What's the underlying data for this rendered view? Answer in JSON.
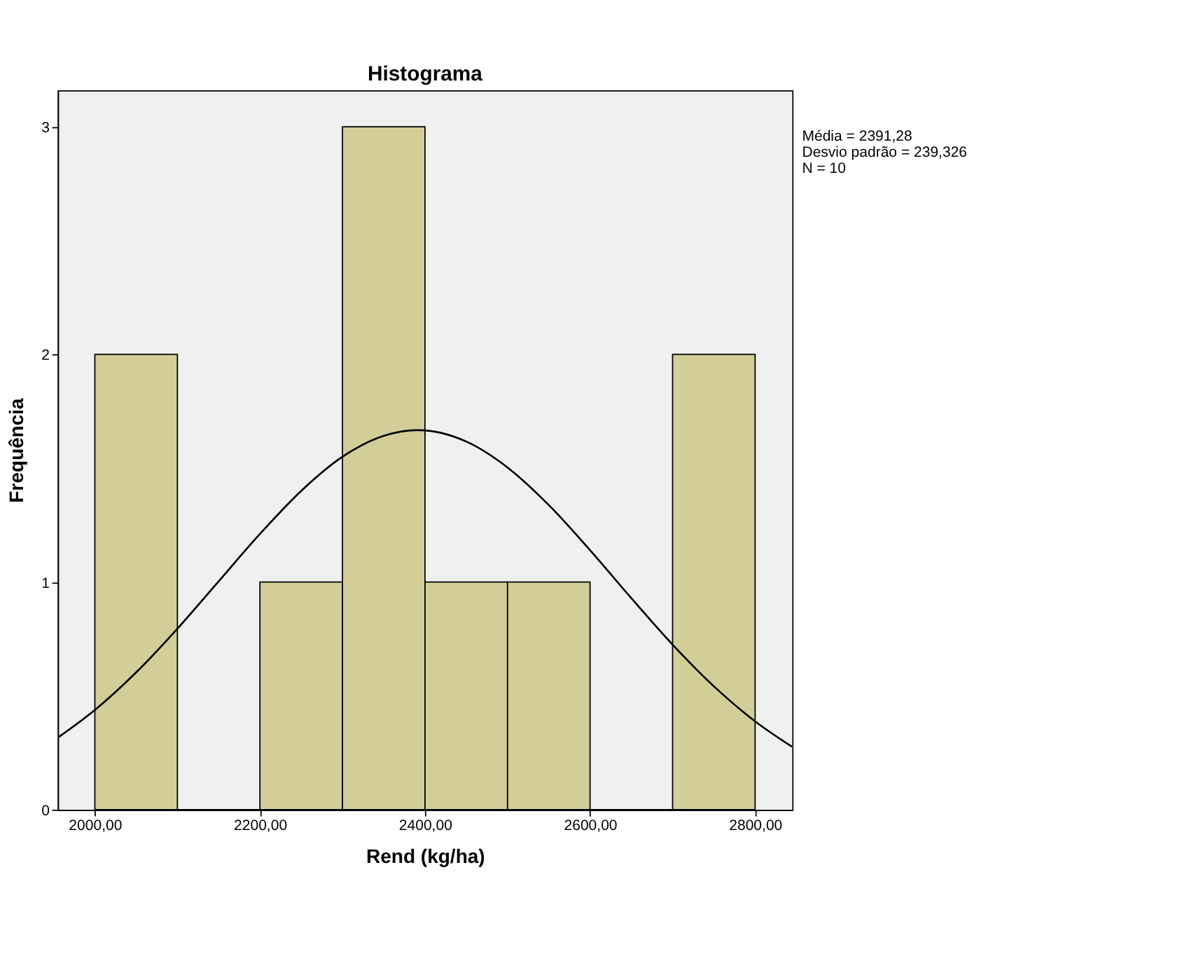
{
  "chart_data": {
    "type": "histogram",
    "title": "Histograma",
    "xlabel": "Rend (kg/ha)",
    "ylabel": "Frequência",
    "bins": [
      2000,
      2100,
      2200,
      2300,
      2400,
      2500,
      2600,
      2700,
      2800
    ],
    "values": [
      2,
      0,
      1,
      3,
      1,
      1,
      0,
      2
    ],
    "color": "#d3ce97",
    "xlim": [
      1955,
      2845
    ],
    "xticks": [
      {
        "value": 2000,
        "label": "2000,00"
      },
      {
        "value": 2200,
        "label": "2200,00"
      },
      {
        "value": 2400,
        "label": "2400,00"
      },
      {
        "value": 2600,
        "label": "2600,00"
      },
      {
        "value": 2800,
        "label": "2800,00"
      }
    ],
    "ylim": [
      0,
      3.16
    ],
    "yticks": [
      0,
      1,
      2,
      3
    ],
    "grid": false,
    "series": [
      {
        "type": "line",
        "color": "#000000",
        "x": [
          1955,
          2000,
          2050,
          2100,
          2150,
          2200,
          2250,
          2300,
          2350,
          2391,
          2450,
          2500,
          2550,
          2600,
          2650,
          2700,
          2750,
          2800,
          2845
        ],
        "values": [
          0.316,
          0.438,
          0.603,
          0.795,
          1.003,
          1.211,
          1.4,
          1.55,
          1.642,
          1.667,
          1.617,
          1.503,
          1.338,
          1.14,
          0.929,
          0.725,
          0.542,
          0.388,
          0.276
        ]
      }
    ],
    "annotations": [
      "Média = 2391,28",
      "Desvio padrão = 239,326",
      "N = 10"
    ]
  }
}
